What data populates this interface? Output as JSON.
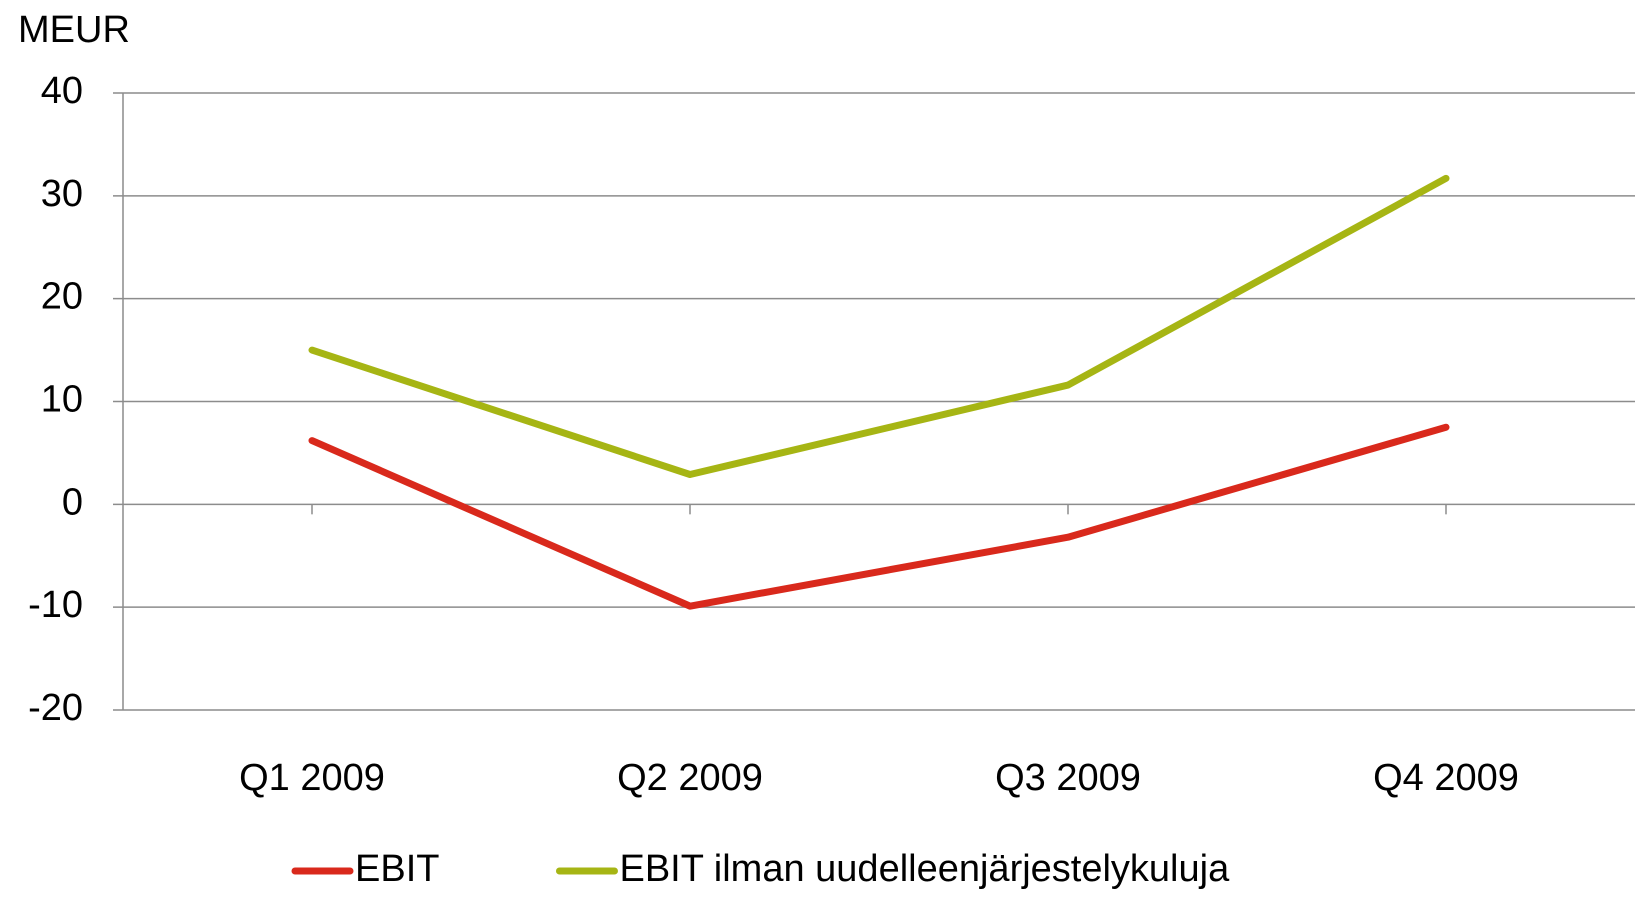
{
  "chart_data": {
    "type": "line",
    "y_label": "MEUR",
    "categories": [
      "Q1 2009",
      "Q2 2009",
      "Q3 2009",
      "Q4 2009"
    ],
    "series": [
      {
        "name": "EBIT",
        "color": "#d9291c",
        "values": [
          6.2,
          -9.9,
          -3.2,
          7.5
        ]
      },
      {
        "name": "EBIT ilman uudelleenjärjestelykuluja",
        "color": "#a6b514",
        "values": [
          15.0,
          2.9,
          11.6,
          31.7
        ]
      }
    ],
    "ylim": [
      -20,
      40
    ],
    "yticks": [
      -20,
      -10,
      0,
      10,
      20,
      30,
      40
    ],
    "grid": true,
    "legend": "bottom"
  }
}
